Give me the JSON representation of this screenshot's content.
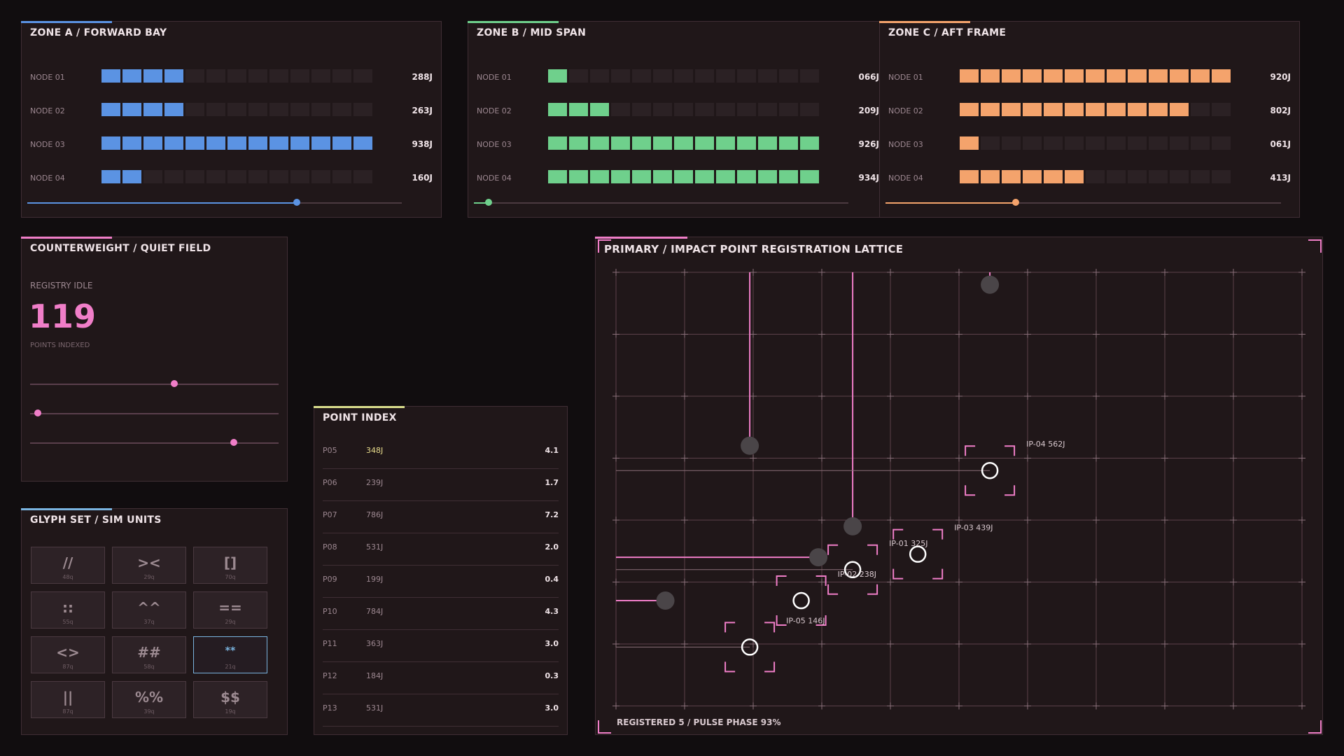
{
  "zones": [
    {
      "title": "ZONE A / FORWARD BAY",
      "color": "#5b93e3",
      "slider": 0.72,
      "nodes": [
        {
          "label": "NODE 01",
          "filled": 4,
          "value": "288J"
        },
        {
          "label": "NODE 02",
          "filled": 4,
          "value": "263J"
        },
        {
          "label": "NODE 03",
          "filled": 13,
          "value": "938J"
        },
        {
          "label": "NODE 04",
          "filled": 2,
          "value": "160J"
        }
      ]
    },
    {
      "title": "ZONE B / MID SPAN",
      "color": "#6fd08c",
      "slider": 0.04,
      "nodes": [
        {
          "label": "NODE 01",
          "filled": 1,
          "value": "066J"
        },
        {
          "label": "NODE 02",
          "filled": 3,
          "value": "209J"
        },
        {
          "label": "NODE 03",
          "filled": 13,
          "value": "926J"
        },
        {
          "label": "NODE 04",
          "filled": 13,
          "value": "934J"
        }
      ]
    },
    {
      "title": "ZONE C / AFT FRAME",
      "color": "#f4a36c",
      "slider": 0.33,
      "nodes": [
        {
          "label": "NODE 01",
          "filled": 13,
          "value": "920J"
        },
        {
          "label": "NODE 02",
          "filled": 11,
          "value": "802J"
        },
        {
          "label": "NODE 03",
          "filled": 1,
          "value": "061J"
        },
        {
          "label": "NODE 04",
          "filled": 6,
          "value": "413J"
        }
      ]
    }
  ],
  "counterweight": {
    "title": "COUNTERWEIGHT / QUIET FIELD",
    "status": "REGISTRY IDLE",
    "count": "119",
    "count_label": "POINTS INDEXED",
    "sliders": [
      0.58,
      0.03,
      0.82
    ],
    "color": "#f07ec8"
  },
  "glyphs": {
    "title": "GLYPH SET / SIM UNITS",
    "items": [
      {
        "g": "//",
        "q": "48q"
      },
      {
        "g": "><",
        "q": "29q"
      },
      {
        "g": "[]",
        "q": "70q"
      },
      {
        "g": "::",
        "q": "55q"
      },
      {
        "g": "^^",
        "q": "37q"
      },
      {
        "g": "==",
        "q": "29q"
      },
      {
        "g": "<>",
        "q": "87q"
      },
      {
        "g": "##",
        "q": "58q"
      },
      {
        "g": "**",
        "q": "21q",
        "selected": true
      },
      {
        "g": "||",
        "q": "87q"
      },
      {
        "g": "%%",
        "q": "39q"
      },
      {
        "g": "$$",
        "q": "19q"
      }
    ]
  },
  "point_index": {
    "title": "POINT INDEX",
    "rows": [
      {
        "id": "P05",
        "j": "348J",
        "v": "4.1",
        "hl": true
      },
      {
        "id": "P06",
        "j": "239J",
        "v": "1.7"
      },
      {
        "id": "P07",
        "j": "786J",
        "v": "7.2"
      },
      {
        "id": "P08",
        "j": "531J",
        "v": "2.0"
      },
      {
        "id": "P09",
        "j": "199J",
        "v": "0.4"
      },
      {
        "id": "P10",
        "j": "784J",
        "v": "4.3"
      },
      {
        "id": "P11",
        "j": "363J",
        "v": "3.0"
      },
      {
        "id": "P12",
        "j": "184J",
        "v": "0.3"
      },
      {
        "id": "P13",
        "j": "531J",
        "v": "3.0"
      }
    ]
  },
  "lattice": {
    "title": "PRIMARY / IMPACT POINT REGISTRATION LATTICE",
    "footer": "REGISTERED 5 / PULSE PHASE 93%",
    "cols": 11,
    "rows": 8,
    "points": [
      {
        "label": "IP-04 562J",
        "c": 5.45,
        "r": 3.2
      },
      {
        "label": "IP-03 439J",
        "c": 4.4,
        "r": 4.55
      },
      {
        "label": "IP-01 325J",
        "c": 3.45,
        "r": 4.8
      },
      {
        "label": "IP-02 238J",
        "c": 2.7,
        "r": 5.3
      },
      {
        "label": "IP-05 146J",
        "c": 1.95,
        "r": 6.05
      }
    ],
    "markers": [
      {
        "c": 5.45,
        "r": 0.2
      },
      {
        "c": 1.95,
        "r": 2.8
      },
      {
        "c": 3.45,
        "r": 4.1
      },
      {
        "c": 2.95,
        "r": 4.6
      },
      {
        "c": 0.72,
        "r": 5.3
      }
    ]
  }
}
